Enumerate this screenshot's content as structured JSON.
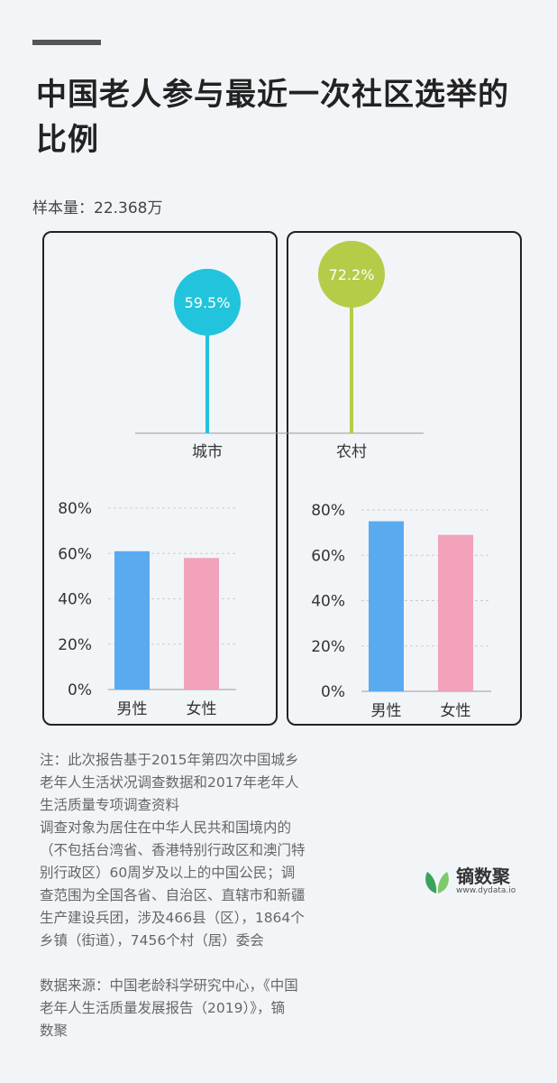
{
  "title": "中国老人参与最近一次社区选举的比例",
  "sample": "样本量：22.368万",
  "colors": {
    "city": "#21c4dc",
    "rural": "#b4cc48",
    "male": "#5aaaf0",
    "female": "#f2a2bb",
    "grid": "#cccccc",
    "axis": "#999999"
  },
  "chart_data": [
    {
      "type": "lollipop",
      "categories": [
        "城市",
        "农村"
      ],
      "values": [
        59.5,
        72.2
      ],
      "labels": [
        "59.5%",
        "72.2%"
      ],
      "unit": "%"
    },
    {
      "type": "bar",
      "group": "城市",
      "categories": [
        "男性",
        "女性"
      ],
      "values": [
        61,
        58
      ],
      "ylim": [
        0,
        80
      ],
      "yticks": [
        "0%",
        "20%",
        "40%",
        "60%",
        "80%"
      ],
      "grid": true
    },
    {
      "type": "bar",
      "group": "农村",
      "categories": [
        "男性",
        "女性"
      ],
      "values": [
        75,
        69
      ],
      "ylim": [
        0,
        80
      ],
      "yticks": [
        "0%",
        "20%",
        "40%",
        "60%",
        "80%"
      ],
      "grid": true
    }
  ],
  "note_lines": [
    "注：此次报告基于2015年第四次中国城乡",
    "老年人生活状况调查数据和2017年老年人",
    "生活质量专项调查资料",
    "调查对象为居住在中华人民共和国境内的",
    "（不包括台湾省、香港特别行政区和澳门特",
    "别行政区）60周岁及以上的中国公民；调",
    "查范围为全国各省、自治区、直辖市和新疆",
    "生产建设兵团，涉及466县（区），1864个",
    "乡镇（街道），7456个村（居）委会"
  ],
  "source_lines": [
    "数据来源：中国老龄科学研究中心，《中国",
    "老年人生活质量发展报告（2019）》，镝",
    "数聚"
  ],
  "brand": {
    "name": "镝数聚",
    "url": "www.dydata.io",
    "icon": "leaf-icon"
  }
}
